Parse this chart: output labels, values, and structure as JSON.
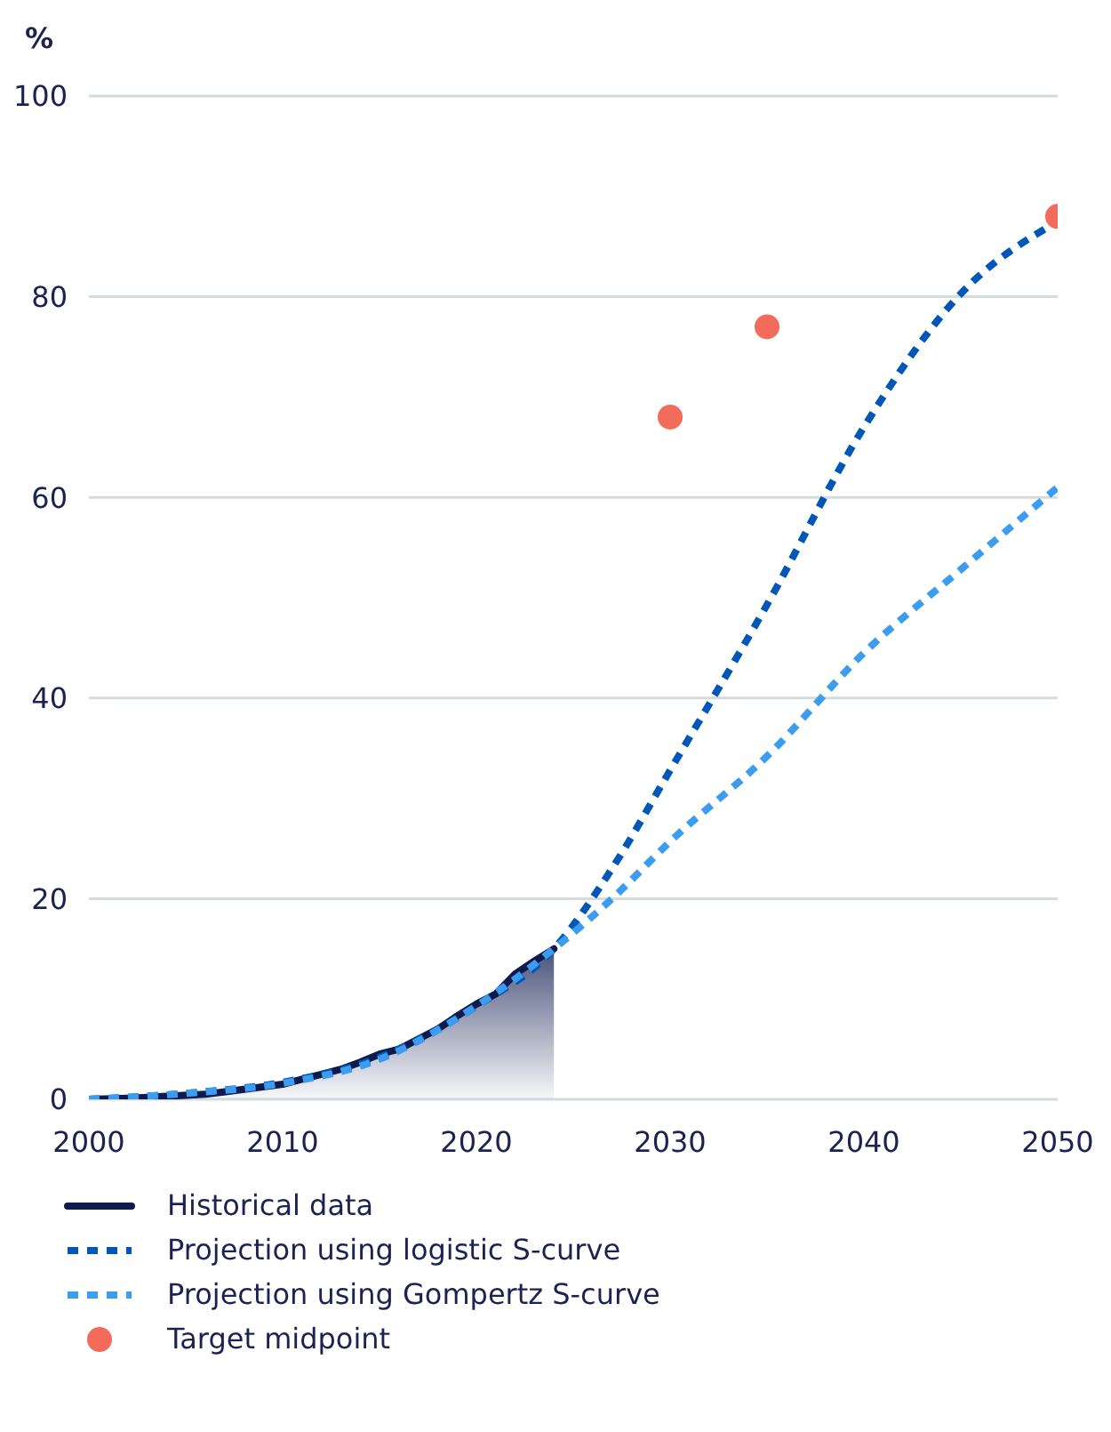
{
  "chart_data": {
    "type": "line",
    "ylabel": "%",
    "xlim": [
      2000,
      2050
    ],
    "xticks": [
      2000,
      2010,
      2020,
      2030,
      2040,
      2050
    ],
    "ylim": [
      0,
      100
    ],
    "yticks": [
      0,
      20,
      40,
      60,
      80,
      100
    ],
    "grid": "y",
    "legend": "bottom",
    "series": [
      {
        "name": "Historical data",
        "type": "area",
        "color": "#0d1b4f",
        "line_style": "solid",
        "marker": "none",
        "x": [
          2000,
          2002,
          2004,
          2006,
          2008,
          2010,
          2011,
          2012,
          2013,
          2014,
          2015,
          2016,
          2017,
          2018,
          2019,
          2020,
          2021,
          2022,
          2023,
          2024
        ],
        "values": [
          0,
          0.1,
          0.3,
          0.5,
          1,
          1.5,
          2,
          2.5,
          3,
          3.7,
          4.5,
          5,
          6,
          7,
          8.3,
          9.5,
          10.5,
          12.5,
          13.8,
          15
        ]
      },
      {
        "name": "Projection using logistic S-curve",
        "color": "#0057b8",
        "line_style": "dashed",
        "marker": "none",
        "x": [
          2000,
          2005,
          2010,
          2015,
          2020,
          2024,
          2027,
          2030,
          2035,
          2040,
          2045,
          2050
        ],
        "values": [
          0,
          0.6,
          1.7,
          4.2,
          9.3,
          15,
          23,
          32.8,
          49.3,
          67,
          80.3,
          87.5
        ]
      },
      {
        "name": "Projection using Gompertz S-curve",
        "color": "#3b9cf0",
        "line_style": "dashed",
        "marker": "none",
        "x": [
          2000,
          2005,
          2010,
          2015,
          2020,
          2024,
          2027,
          2030,
          2035,
          2040,
          2045,
          2050
        ],
        "values": [
          0,
          0.6,
          1.6,
          4,
          9.3,
          15,
          20,
          25.7,
          34.2,
          44.5,
          52.8,
          61
        ]
      },
      {
        "name": "Target midpoint",
        "type": "scatter",
        "color": "#f26b5b",
        "marker": "circle",
        "x": [
          2030,
          2035,
          2050
        ],
        "values": [
          68,
          77,
          88
        ]
      }
    ]
  }
}
